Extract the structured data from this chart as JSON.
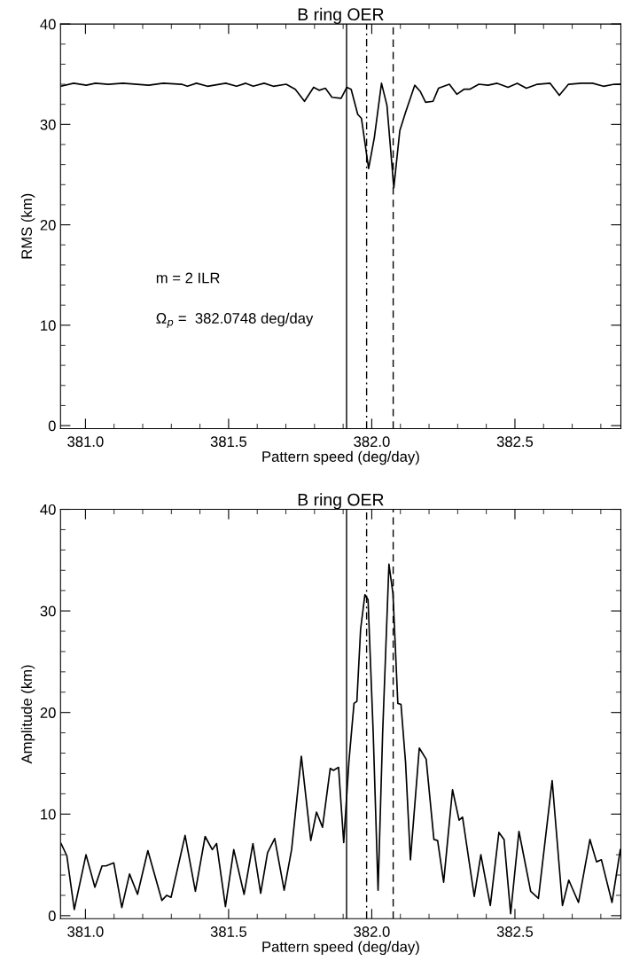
{
  "chart_data": [
    {
      "type": "line",
      "title": "B ring OER",
      "xlabel": "Pattern speed (deg/day)",
      "ylabel": "RMS (km)",
      "xlim": [
        380.913,
        382.87
      ],
      "ylim": [
        -0.3,
        40
      ],
      "xticks": [
        {
          "value": 381.0,
          "label": "381.0"
        },
        {
          "value": 381.5,
          "label": "381.5"
        },
        {
          "value": 382.0,
          "label": "382.0"
        },
        {
          "value": 382.5,
          "label": "382.5"
        }
      ],
      "yticks": [
        0,
        10,
        20,
        30,
        40
      ],
      "grid": false,
      "legend": false,
      "marker": "none",
      "line_style": "solid",
      "annotations": [
        "m = 2 ILR",
        "Ω$_{p}$ =  382.0748 deg/day"
      ],
      "ref_lines": [
        {
          "axis": "x",
          "value": 381.912,
          "line_style": "solid",
          "color": "#000000"
        },
        {
          "axis": "x",
          "value": 381.982,
          "line_style": "dashdot",
          "color": "#000000"
        },
        {
          "axis": "x",
          "value": 382.0748,
          "line_style": "dashed",
          "color": "#000000"
        }
      ],
      "series": [
        {
          "color": "#000000",
          "x": [
            380.914,
            380.959,
            381.003,
            381.035,
            381.08,
            381.131,
            381.221,
            381.272,
            381.336,
            381.356,
            381.388,
            381.426,
            381.49,
            381.528,
            381.56,
            381.586,
            381.624,
            381.656,
            381.701,
            381.733,
            381.765,
            381.797,
            381.816,
            381.838,
            381.861,
            381.893,
            381.913,
            381.928,
            381.951,
            381.964,
            381.989,
            382.009,
            382.034,
            382.053,
            382.077,
            382.098,
            382.118,
            382.15,
            382.169,
            382.188,
            382.214,
            382.233,
            382.271,
            382.297,
            382.322,
            382.342,
            382.374,
            382.406,
            382.438,
            382.476,
            382.508,
            382.54,
            382.578,
            382.623,
            382.655,
            382.687,
            382.732,
            382.771,
            382.809,
            382.847,
            382.87
          ],
          "values": [
            33.8,
            34.1,
            33.9,
            34.1,
            34.0,
            34.1,
            33.9,
            34.1,
            34.0,
            33.8,
            34.1,
            33.8,
            34.1,
            33.8,
            34.1,
            33.8,
            34.1,
            33.8,
            34.0,
            33.5,
            32.3,
            33.7,
            33.4,
            33.6,
            32.7,
            32.6,
            33.7,
            33.5,
            31.0,
            30.6,
            25.6,
            28.7,
            34.1,
            31.9,
            23.7,
            29.4,
            31.2,
            33.9,
            33.3,
            32.2,
            32.3,
            33.6,
            34.0,
            33.0,
            33.5,
            33.5,
            34.0,
            33.9,
            34.1,
            33.7,
            34.1,
            33.6,
            34.0,
            34.1,
            32.9,
            34.0,
            34.1,
            34.1,
            33.8,
            34.0,
            34.0
          ]
        }
      ]
    },
    {
      "type": "line",
      "title": "B ring OER",
      "xlabel": "Pattern speed (deg/day)",
      "ylabel": "Amplitude (km)",
      "xlim": [
        380.913,
        382.87
      ],
      "ylim": [
        -0.3,
        40
      ],
      "xticks": [
        {
          "value": 381.0,
          "label": "381.0"
        },
        {
          "value": 381.5,
          "label": "381.5"
        },
        {
          "value": 382.0,
          "label": "382.0"
        },
        {
          "value": 382.5,
          "label": "382.5"
        }
      ],
      "yticks": [
        0,
        10,
        20,
        30,
        40
      ],
      "grid": false,
      "legend": false,
      "marker": "none",
      "line_style": "solid",
      "ref_lines": [
        {
          "axis": "x",
          "value": 381.912,
          "line_style": "solid",
          "color": "#000000"
        },
        {
          "axis": "x",
          "value": 381.982,
          "line_style": "dashdot",
          "color": "#000000"
        },
        {
          "axis": "x",
          "value": 382.0748,
          "line_style": "dashed",
          "color": "#000000"
        }
      ],
      "series": [
        {
          "color": "#000000",
          "x": [
            380.915,
            380.935,
            380.961,
            381.002,
            381.033,
            381.058,
            381.072,
            381.099,
            381.127,
            381.154,
            381.182,
            381.218,
            381.267,
            381.284,
            381.299,
            381.348,
            381.384,
            381.418,
            381.443,
            381.458,
            381.489,
            381.518,
            381.554,
            381.585,
            381.612,
            381.636,
            381.661,
            381.694,
            381.72,
            381.754,
            381.787,
            381.807,
            381.828,
            381.855,
            381.866,
            381.884,
            381.902,
            381.92,
            381.938,
            381.948,
            381.961,
            381.976,
            381.987,
            382.005,
            382.022,
            382.038,
            382.06,
            382.074,
            382.091,
            382.102,
            382.118,
            382.135,
            382.166,
            382.19,
            382.217,
            382.23,
            382.251,
            382.282,
            382.305,
            382.317,
            382.358,
            382.381,
            382.414,
            382.444,
            382.462,
            382.485,
            382.514,
            382.555,
            382.582,
            382.63,
            382.666,
            382.688,
            382.722,
            382.762,
            382.785,
            382.802,
            382.839,
            382.868
          ],
          "values": [
            7.1,
            5.9,
            0.6,
            6.0,
            2.8,
            4.9,
            4.9,
            5.2,
            0.8,
            4.1,
            2.1,
            6.4,
            1.5,
            2.0,
            1.8,
            7.9,
            2.4,
            7.8,
            6.5,
            7.1,
            0.9,
            6.5,
            2.1,
            7.1,
            2.2,
            6.2,
            7.6,
            2.5,
            6.5,
            15.7,
            7.4,
            10.2,
            8.7,
            14.5,
            14.3,
            14.6,
            7.2,
            15.1,
            20.9,
            21.1,
            28.2,
            31.6,
            31.1,
            18.0,
            2.5,
            18.0,
            34.6,
            31.7,
            20.9,
            20.8,
            15.1,
            5.5,
            16.5,
            15.4,
            7.5,
            7.4,
            3.3,
            12.4,
            9.4,
            9.7,
            1.9,
            6.0,
            1.0,
            8.2,
            7.5,
            0.2,
            8.3,
            2.4,
            1.7,
            13.3,
            1.0,
            3.5,
            1.3,
            7.5,
            5.3,
            5.5,
            1.3,
            6.5
          ]
        }
      ]
    }
  ]
}
